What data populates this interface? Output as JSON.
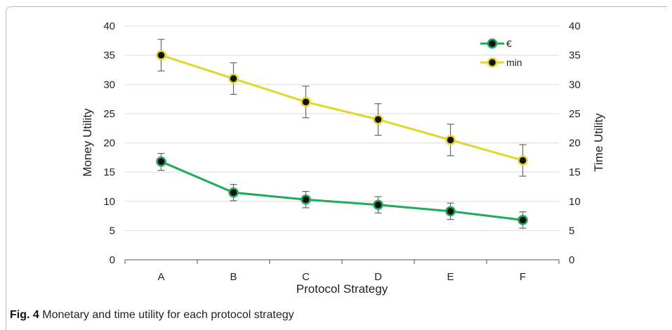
{
  "chart_data": {
    "type": "line",
    "categories": [
      "A",
      "B",
      "C",
      "D",
      "E",
      "F"
    ],
    "xlabel": "Protocol Strategy",
    "ylabel_left": "Money Utility",
    "ylabel_right": "Time Utility",
    "ylim": [
      0,
      40
    ],
    "yticks": [
      0,
      5,
      10,
      15,
      20,
      25,
      30,
      35,
      40
    ],
    "legend_position": "top-right",
    "series": [
      {
        "name": "€",
        "axis": "left",
        "color": "#1faa59",
        "values": [
          16.8,
          11.5,
          10.3,
          9.4,
          8.3,
          6.8
        ],
        "error_low": [
          15.3,
          10.1,
          8.9,
          8.0,
          6.9,
          5.4
        ],
        "error_high": [
          18.2,
          12.9,
          11.7,
          10.8,
          9.7,
          8.2
        ]
      },
      {
        "name": "min",
        "axis": "right",
        "color": "#e3d52a",
        "values": [
          35.0,
          31.0,
          27.0,
          24.0,
          20.5,
          17.0
        ],
        "error_low": [
          32.3,
          28.3,
          24.3,
          21.3,
          17.8,
          14.3
        ],
        "error_high": [
          37.7,
          33.7,
          29.7,
          26.7,
          23.2,
          19.7
        ]
      }
    ]
  },
  "caption": {
    "label": "Fig. 4",
    "text": "Monetary and time utility for each protocol strategy"
  }
}
